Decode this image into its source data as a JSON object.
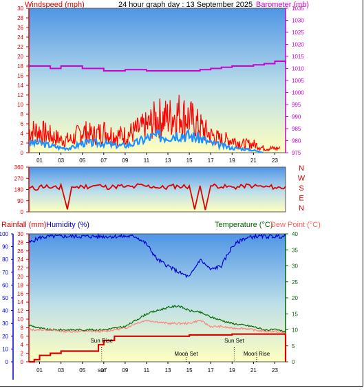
{
  "header": {
    "title": "24 hour graph day : 13 September 2025",
    "windspeed_label": "Windspeed (mph)",
    "barometer_label": "Barometer (mb)"
  },
  "colors": {
    "wind_gust": "#ff0000",
    "wind_avg": "#1e90ff",
    "barometer": "#cc00cc",
    "direction": "#dd0000",
    "humidity": "#0000cc",
    "rainfall": "#dd0000",
    "temperature": "#006600",
    "dewpoint": "#ff8080",
    "sky_top": "#5aa0e8",
    "sky_bottom": "#ffffbb"
  },
  "direction_panel": {
    "compass_labels": [
      "N",
      "W",
      "S",
      "E",
      "N"
    ]
  },
  "lower_panel": {
    "rainfall_label": "Rainfall (mm)",
    "humidity_label": "Humidity (%)",
    "temperature_label": "Temperature (°C)",
    "dewpoint_label": "Dew Point (°C)",
    "events": [
      {
        "label": "Sun Rise",
        "hour": 6.8
      },
      {
        "label": "Sun Set",
        "hour": 19.2
      },
      {
        "label": "Moon Set",
        "hour": 14.7
      },
      {
        "label": "Moon Rise",
        "hour": 21.3
      }
    ],
    "bottom_event_labels": {
      "sunrise_time": "Sun",
      "sunrise_marker": "R"
    }
  },
  "chart_data": [
    {
      "type": "line",
      "title": "24 hour graph day : 13 September 2025",
      "x_ticks": [
        "01",
        "03",
        "05",
        "07",
        "09",
        "11",
        "13",
        "15",
        "17",
        "19",
        "21",
        "23"
      ],
      "x_range_hours": [
        0,
        24
      ],
      "left_axis": {
        "label": "Windspeed (mph)",
        "ylim": [
          0,
          30
        ],
        "ticks": [
          0,
          2,
          4,
          6,
          8,
          10,
          12,
          14,
          16,
          18,
          20,
          22,
          24,
          26,
          28,
          30
        ]
      },
      "right_axis": {
        "label": "Barometer (mb)",
        "ylim": [
          975,
          1035
        ],
        "ticks": [
          975,
          980,
          985,
          990,
          995,
          1000,
          1005,
          1010,
          1015,
          1020,
          1025,
          1030,
          1035
        ]
      },
      "series": [
        {
          "name": "Gust",
          "axis": "left",
          "hours": [
            0,
            1,
            2,
            3,
            4,
            5,
            6,
            7,
            8,
            9,
            10,
            11,
            12,
            13,
            14,
            15,
            16,
            17,
            18,
            19,
            20,
            21,
            22,
            23
          ],
          "values": [
            5,
            5,
            4,
            3,
            3,
            5,
            4,
            5,
            4,
            4,
            5,
            6,
            8,
            8,
            9,
            8,
            6,
            4,
            3,
            3,
            2,
            2,
            1,
            1
          ]
        },
        {
          "name": "Average",
          "axis": "left",
          "hours": [
            0,
            1,
            2,
            3,
            4,
            5,
            6,
            7,
            8,
            9,
            10,
            11,
            12,
            13,
            14,
            15,
            16,
            17,
            18,
            19,
            20,
            21,
            22,
            23
          ],
          "values": [
            2,
            2,
            1.5,
            1,
            1,
            2,
            2,
            2,
            1.5,
            1.5,
            2,
            3,
            3.5,
            3.5,
            4,
            3.5,
            3,
            2,
            1.5,
            1,
            0.8,
            0.5,
            0,
            0
          ]
        },
        {
          "name": "Barometer",
          "axis": "right",
          "hours": [
            0,
            1,
            2,
            3,
            4,
            5,
            6,
            7,
            8,
            9,
            10,
            11,
            12,
            13,
            14,
            15,
            16,
            17,
            18,
            19,
            20,
            21,
            22,
            23,
            24
          ],
          "values": [
            1011,
            1011,
            1010,
            1011,
            1011,
            1010,
            1010,
            1009,
            1009,
            1009.5,
            1009.5,
            1009,
            1009,
            1009,
            1009,
            1009,
            1009.5,
            1010,
            1010.5,
            1011,
            1011,
            1011.5,
            1012,
            1013,
            1012
          ]
        }
      ]
    },
    {
      "type": "line",
      "x_range_hours": [
        0,
        24
      ],
      "axis": {
        "ylim": [
          0,
          360
        ],
        "ticks": [
          0,
          90,
          180,
          270,
          360
        ]
      },
      "series": [
        {
          "name": "Direction",
          "hours": [
            0,
            1,
            2,
            3,
            3.6,
            4,
            5,
            6,
            7,
            8,
            9,
            10,
            11,
            12,
            13,
            14,
            15,
            15.5,
            16,
            16.5,
            17,
            18,
            19,
            20,
            21,
            22,
            23,
            24
          ],
          "values": [
            190,
            205,
            190,
            220,
            20,
            200,
            205,
            210,
            200,
            205,
            200,
            210,
            205,
            195,
            205,
            205,
            210,
            20,
            210,
            15,
            210,
            200,
            200,
            210,
            205,
            200,
            195,
            205
          ]
        }
      ]
    },
    {
      "type": "line",
      "x_range_hours": [
        0,
        24
      ],
      "left_axes": [
        {
          "label": "Humidity (%)",
          "ylim": [
            0,
            100
          ],
          "ticks": [
            0,
            10,
            20,
            30,
            40,
            50,
            60,
            70,
            80,
            90,
            100
          ]
        },
        {
          "label": "Rainfall (mm)",
          "ylim": [
            0,
            30
          ],
          "ticks": [
            0,
            2,
            4,
            6,
            8,
            10,
            12,
            14,
            16,
            18,
            20,
            22,
            24,
            26,
            28,
            30
          ]
        }
      ],
      "right_axis": {
        "label": "Temperature (°C)",
        "ylim": [
          0,
          40
        ],
        "ticks": [
          0,
          5,
          10,
          15,
          20,
          25,
          30,
          35,
          40
        ]
      },
      "series": [
        {
          "name": "Humidity",
          "axis": "humidity",
          "hours": [
            0,
            1,
            2,
            3,
            4,
            5,
            6,
            7,
            8,
            9,
            10,
            11,
            12,
            13,
            14,
            15,
            16,
            17,
            18,
            19,
            20,
            21,
            22,
            23,
            24
          ],
          "values": [
            93,
            97,
            98,
            98,
            98,
            98,
            98,
            98,
            98,
            98,
            98,
            92,
            80,
            75,
            70,
            66,
            80,
            72,
            75,
            90,
            96,
            98,
            98,
            98,
            98
          ]
        },
        {
          "name": "Rainfall",
          "axis": "rainfall",
          "hours": [
            0,
            0.5,
            1,
            2,
            3,
            4,
            5,
            6,
            6.5,
            7,
            8,
            9,
            10,
            11,
            12,
            13,
            14,
            15,
            16,
            17,
            18,
            19,
            20,
            21,
            22,
            23,
            24
          ],
          "values": [
            0,
            0.5,
            1.5,
            2,
            2.5,
            2.5,
            2.5,
            2.5,
            4,
            5,
            6,
            6,
            6,
            6,
            6,
            6,
            6,
            6.3,
            6.3,
            6.3,
            6.3,
            6.5,
            6.5,
            6.5,
            6.5,
            6.5,
            0
          ]
        },
        {
          "name": "Temperature",
          "axis": "right",
          "hours": [
            0,
            1,
            2,
            3,
            4,
            5,
            6,
            7,
            8,
            9,
            10,
            11,
            12,
            13,
            14,
            15,
            16,
            17,
            18,
            19,
            20,
            21,
            22,
            23,
            24
          ],
          "values": [
            11.5,
            10.5,
            10,
            10,
            10,
            10,
            10,
            10,
            10.5,
            11,
            13,
            15,
            16,
            17,
            17.5,
            16,
            15.5,
            14,
            13,
            12,
            11.5,
            11,
            10,
            10,
            9.5
          ]
        },
        {
          "name": "Dew Point",
          "axis": "right",
          "hours": [
            0,
            1,
            2,
            3,
            4,
            5,
            6,
            7,
            8,
            9,
            10,
            11,
            12,
            13,
            14,
            15,
            16,
            17,
            18,
            19,
            20,
            21,
            22,
            23,
            24
          ],
          "values": [
            10,
            10,
            10,
            9.5,
            9.5,
            9.5,
            9.5,
            9.5,
            10,
            10.5,
            12,
            13,
            12.5,
            12,
            12,
            12,
            13,
            11,
            11,
            10.5,
            10.5,
            10,
            9.5,
            9.5,
            9
          ]
        }
      ]
    }
  ]
}
